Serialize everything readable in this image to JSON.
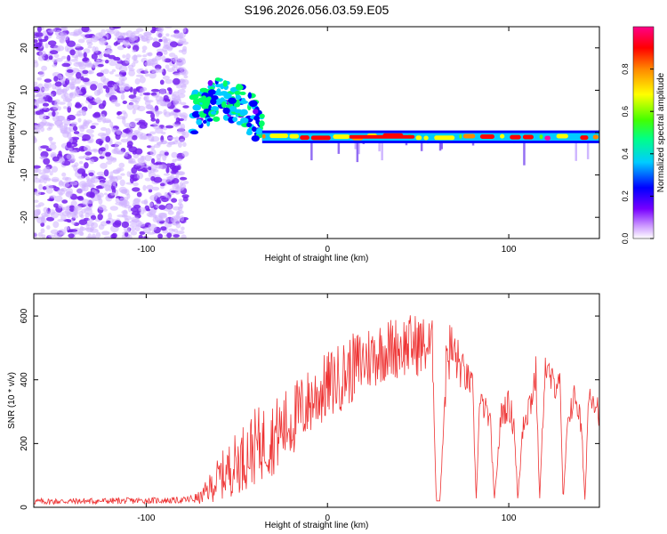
{
  "figure_title": "S196.2026.056.03.59.E05",
  "colors": {
    "trace": "#ee3333",
    "axis": "#000000",
    "scatter": "#7722ee"
  },
  "chart_data": [
    {
      "type": "heatmap",
      "title": "S196.2026.056.03.59.E05",
      "xlabel": "Height of straight line (km)",
      "ylabel": "Frequency (Hz)",
      "xlim": [
        -162,
        150
      ],
      "ylim": [
        -25,
        25
      ],
      "xticks": [
        -100,
        0,
        100
      ],
      "yticks": [
        -20,
        -10,
        0,
        10,
        20
      ],
      "colorbar_label": "Normalized spectral amplitude",
      "colorbar_range": [
        0,
        1
      ],
      "colorbar_ticks": [
        0.0,
        0.2,
        0.4,
        0.6,
        0.8
      ],
      "colormap": [
        "#ffffff",
        "#7700ff",
        "#0000ff",
        "#00ccff",
        "#00ff66",
        "#66ff00",
        "#ffff00",
        "#ff8800",
        "#ff0000",
        "#ff00aa"
      ],
      "signal_segments": [
        {
          "x_start": -162,
          "x_end": -78,
          "freq_center": 0,
          "freq_spread": 25,
          "amplitude": 0.2,
          "pattern": "noise"
        },
        {
          "x_start": -75,
          "x_end": -36,
          "freq_center": 4,
          "freq_spread": 6,
          "amplitude": 0.35,
          "pattern": "scattered"
        },
        {
          "x_start": -36,
          "x_end": 150,
          "freq_center": -1,
          "freq_spread": 1.5,
          "amplitude": 0.75,
          "pattern": "line"
        }
      ]
    },
    {
      "type": "line",
      "xlabel": "Height of straight line (km)",
      "ylabel": "SNR (10 * v/v)",
      "xlim": [
        -162,
        150
      ],
      "ylim": [
        0,
        670
      ],
      "xticks": [
        -100,
        0,
        100
      ],
      "yticks": [
        0,
        200,
        400,
        600
      ],
      "series": [
        {
          "name": "SNR",
          "x": [
            -162,
            -120,
            -80,
            -70,
            -60,
            -50,
            -40,
            -30,
            -20,
            -10,
            0,
            10,
            20,
            30,
            40,
            50,
            58,
            60,
            62,
            66,
            70,
            75,
            80,
            82,
            84,
            88,
            90,
            92,
            96,
            100,
            103,
            105,
            108,
            112,
            115,
            117,
            120,
            125,
            128,
            130,
            133,
            137,
            140,
            142,
            144,
            146,
            150
          ],
          "values": [
            18,
            20,
            22,
            30,
            90,
            140,
            190,
            220,
            270,
            330,
            380,
            420,
            460,
            490,
            505,
            510,
            500,
            20,
            20,
            500,
            480,
            420,
            380,
            20,
            330,
            300,
            250,
            20,
            300,
            320,
            260,
            20,
            280,
            330,
            420,
            20,
            440,
            380,
            420,
            20,
            300,
            350,
            250,
            20,
            350,
            360,
            300
          ],
          "noise_amplitude": [
            10,
            10,
            10,
            20,
            70,
            100,
            120,
            120,
            120,
            110,
            110,
            110,
            110,
            100,
            100,
            100,
            90,
            0,
            0,
            110,
            90,
            60,
            40,
            0,
            40,
            40,
            40,
            0,
            50,
            50,
            50,
            0,
            60,
            60,
            60,
            0,
            50,
            50,
            50,
            0,
            50,
            50,
            50,
            0,
            50,
            50,
            50
          ]
        }
      ]
    }
  ]
}
